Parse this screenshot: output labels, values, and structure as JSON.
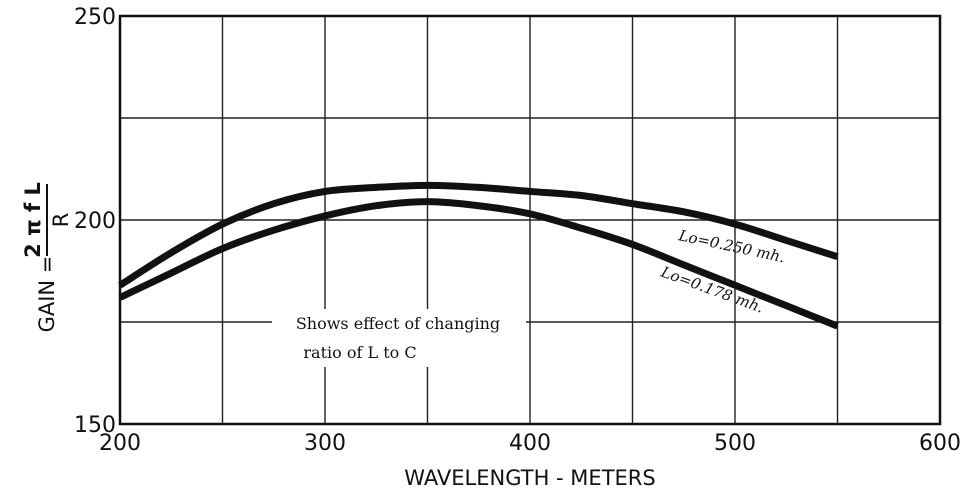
{
  "chart_data": {
    "type": "line",
    "title": "",
    "xlabel": "WAVELENGTH - METERS",
    "ylabel": {
      "prefix": "GAIN =",
      "numerator": "2 π f L",
      "denominator": "R"
    },
    "xlim": [
      200,
      600
    ],
    "ylim": [
      150,
      250
    ],
    "x_ticks": [
      200,
      300,
      400,
      500,
      600
    ],
    "y_ticks": [
      150,
      200,
      250
    ],
    "x_grid": [
      200,
      250,
      300,
      350,
      400,
      450,
      500,
      550,
      600
    ],
    "y_grid": [
      150,
      175,
      200,
      225,
      250
    ],
    "grid": true,
    "series": [
      {
        "name": "Lo = 0.250 mh.",
        "label_text": "Lo=0.250 mh.",
        "x": [
          200,
          225,
          250,
          275,
          300,
          325,
          350,
          375,
          400,
          425,
          450,
          475,
          500,
          525,
          550
        ],
        "y": [
          184,
          192,
          199,
          204,
          207,
          208,
          208.5,
          208,
          207,
          206,
          204,
          202,
          199,
          195,
          191
        ]
      },
      {
        "name": "Lo = 0.178 mh.",
        "label_text": "Lo=0.178 mh.",
        "x": [
          200,
          225,
          250,
          275,
          300,
          325,
          350,
          375,
          400,
          425,
          450,
          475,
          500,
          525,
          550
        ],
        "y": [
          181,
          187,
          193,
          197.5,
          201,
          203.5,
          204.5,
          203.5,
          201.5,
          198,
          194,
          189,
          184,
          179,
          174
        ]
      }
    ],
    "annotations": [
      {
        "text": "Shows effect of changing"
      },
      {
        "text": "ratio of L to C"
      }
    ]
  }
}
